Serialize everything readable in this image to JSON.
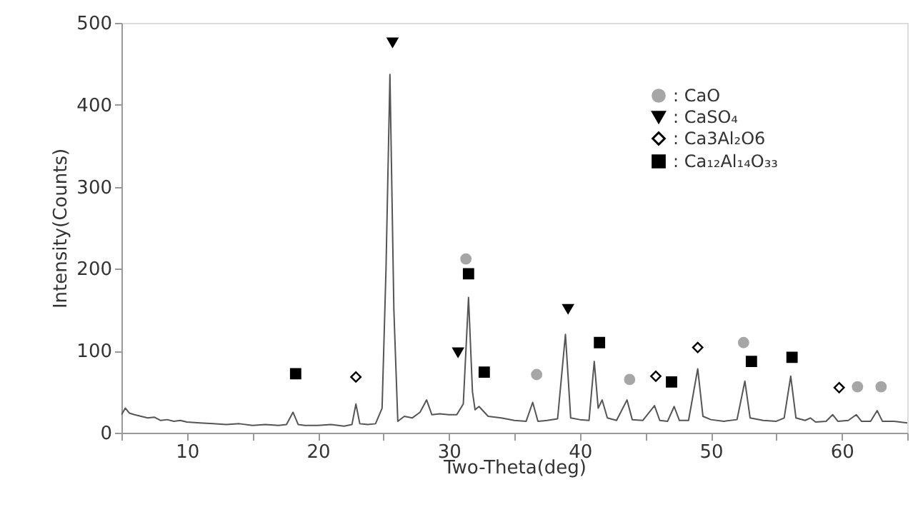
{
  "chart_data": {
    "type": "line",
    "xlabel": "Two-Theta(deg)",
    "ylabel": "Intensity(Counts)",
    "xlim": [
      5,
      65
    ],
    "ylim": [
      0,
      500
    ],
    "xticks": [
      {
        "value": 5,
        "label": null
      },
      10,
      {
        "value": 15,
        "label": null
      },
      20,
      {
        "value": 25,
        "label": null
      },
      30,
      {
        "value": 35,
        "label": null
      },
      40,
      {
        "value": 45,
        "label": null
      },
      50,
      {
        "value": 55,
        "label": null
      },
      60,
      {
        "value": 65,
        "label": null
      }
    ],
    "yticks": [
      0,
      100,
      200,
      300,
      400,
      500
    ],
    "grid": false,
    "legend": "top right",
    "series": [
      {
        "color": "#555555",
        "marker": "none",
        "x": [
          5,
          5.3,
          5.6,
          6,
          6.5,
          7,
          7.5,
          8,
          8.5,
          9,
          9.5,
          10,
          11,
          12,
          13,
          14,
          15,
          16,
          17,
          17.6,
          18.1,
          18.5,
          19,
          20,
          21,
          22,
          22.6,
          22.9,
          23.2,
          23.8,
          24.4,
          24.9,
          25.2,
          25.5,
          25.8,
          26.1,
          26.6,
          27.2,
          27.8,
          28.3,
          28.7,
          29.3,
          30,
          30.6,
          31.1,
          31.5,
          31.8,
          32,
          32.3,
          33,
          34,
          35,
          35.9,
          36.4,
          36.8,
          37.5,
          38.3,
          38.9,
          39.3,
          40,
          40.7,
          41.1,
          41.4,
          41.7,
          42.1,
          42.8,
          43.6,
          44,
          44.8,
          45.7,
          46.1,
          46.7,
          47.2,
          47.6,
          48.3,
          49,
          49.4,
          50,
          51,
          52,
          52.6,
          53,
          54,
          55,
          55.6,
          56.1,
          56.5,
          57.2,
          57.6,
          58,
          58.8,
          59.3,
          59.7,
          60.5,
          61.1,
          61.5,
          62.2,
          62.7,
          63.1,
          64,
          65
        ],
        "values": [
          22,
          30,
          24,
          22,
          20,
          18,
          19,
          15,
          16,
          14,
          15,
          13,
          12,
          11,
          10,
          11,
          9,
          10,
          9,
          10,
          25,
          10,
          9,
          9,
          10,
          8,
          10,
          35,
          11,
          10,
          11,
          30,
          200,
          437,
          150,
          14,
          20,
          18,
          25,
          40,
          22,
          23,
          22,
          22,
          35,
          165,
          50,
          28,
          32,
          20,
          18,
          15,
          14,
          37,
          14,
          15,
          17,
          120,
          18,
          16,
          15,
          87,
          30,
          40,
          18,
          15,
          40,
          16,
          15,
          33,
          15,
          14,
          32,
          15,
          15,
          78,
          20,
          16,
          14,
          16,
          63,
          18,
          15,
          14,
          18,
          69,
          18,
          15,
          18,
          13,
          14,
          22,
          14,
          15,
          22,
          14,
          14,
          27,
          14,
          14,
          12
        ]
      },
      {
        "type": "scatter",
        "name": ": CaO",
        "color": "#a6a6a6",
        "marker": "circle",
        "x": [
          31.3,
          36.7,
          43.8,
          52.5,
          61.2,
          63
        ],
        "values": [
          212,
          71,
          65,
          110,
          56,
          56
        ]
      },
      {
        "type": "scatter",
        "name": ": CaSO₄",
        "color": "#000000",
        "marker": "triangle",
        "x": [
          25.7,
          30.7,
          39.1
        ],
        "values": [
          476,
          98,
          151
        ]
      },
      {
        "type": "scatter",
        "name": ": Ca3Al₂O6",
        "color": "#000000",
        "marker": "diamond",
        "x": [
          22.9,
          45.8,
          49,
          59.8
        ],
        "values": [
          68,
          69,
          104,
          55
        ]
      },
      {
        "type": "scatter",
        "name": ": Ca₁₂Al₁₄O₃₃",
        "color": "#000000",
        "marker": "square",
        "x": [
          18.3,
          31.5,
          32.7,
          41.5,
          47,
          53.1,
          56.2
        ],
        "values": [
          72,
          194,
          74,
          110,
          62,
          87,
          92
        ]
      }
    ]
  }
}
